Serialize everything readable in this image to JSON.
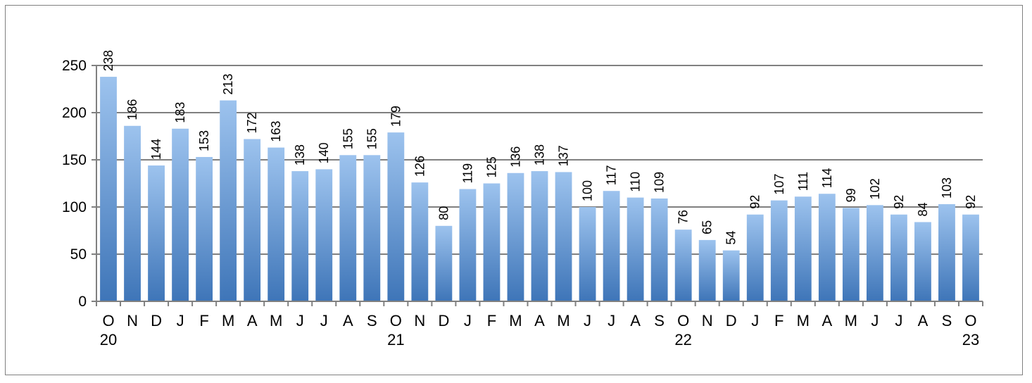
{
  "chart_data": {
    "type": "bar",
    "categories": [
      "O",
      "N",
      "D",
      "J",
      "F",
      "M",
      "A",
      "M",
      "J",
      "J",
      "A",
      "S",
      "O",
      "N",
      "D",
      "J",
      "F",
      "M",
      "A",
      "M",
      "J",
      "J",
      "A",
      "S",
      "O",
      "N",
      "D",
      "J",
      "F",
      "M",
      "A",
      "M",
      "J",
      "J",
      "A",
      "S",
      "O"
    ],
    "year_labels": [
      {
        "index": 0,
        "label": "20"
      },
      {
        "index": 12,
        "label": "21"
      },
      {
        "index": 24,
        "label": "22"
      },
      {
        "index": 36,
        "label": "23"
      }
    ],
    "values": [
      238,
      186,
      144,
      183,
      153,
      213,
      172,
      163,
      138,
      140,
      155,
      155,
      179,
      126,
      80,
      119,
      125,
      136,
      138,
      137,
      100,
      117,
      110,
      109,
      76,
      65,
      54,
      92,
      107,
      111,
      114,
      99,
      102,
      92,
      84,
      103,
      92
    ],
    "ylim": [
      0,
      250
    ],
    "yticks": [
      0,
      50,
      100,
      150,
      200,
      250
    ],
    "grid": true,
    "legend": "none",
    "colors": {
      "bar_top": "#9DC3EE",
      "bar_bottom": "#3E75B8",
      "grid": "#808080"
    }
  }
}
